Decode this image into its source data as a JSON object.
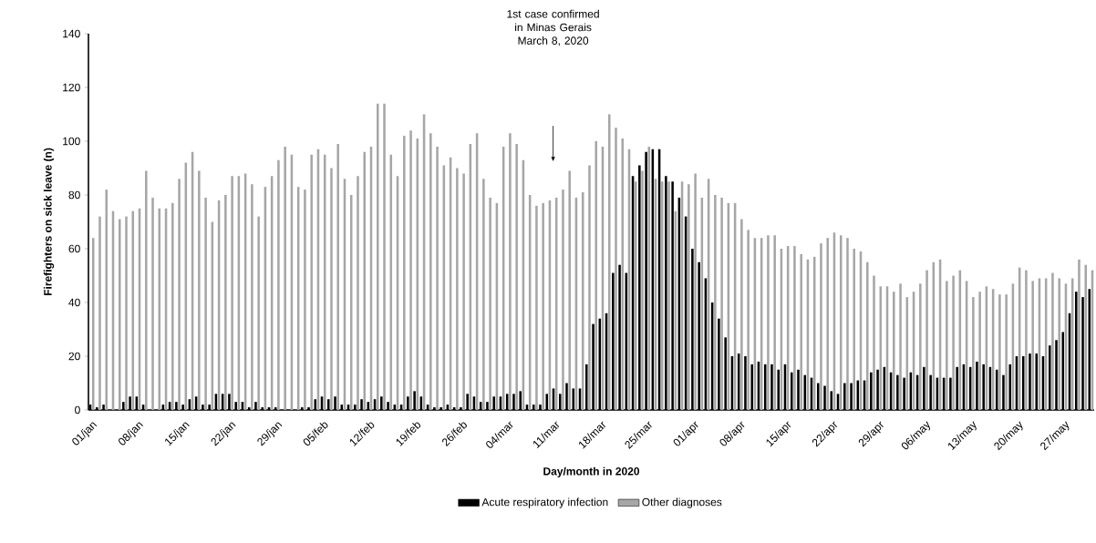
{
  "chart_data": {
    "type": "bar",
    "xlabel": "Day/month in  2020",
    "ylabel": "Firefighters on sick leave (n)",
    "annotations": [
      "1st case confirmed in Minas Gerais March 8, 2020"
    ],
    "categories": [
      "01/jan",
      null,
      null,
      null,
      null,
      null,
      null,
      "08/jan",
      null,
      null,
      null,
      null,
      null,
      null,
      "15/jan",
      null,
      null,
      null,
      null,
      null,
      null,
      "22/jan",
      null,
      null,
      null,
      null,
      null,
      null,
      "29/jan",
      null,
      null,
      null,
      null,
      null,
      null,
      "05/feb",
      null,
      null,
      null,
      null,
      null,
      null,
      "12/feb",
      null,
      null,
      null,
      null,
      null,
      null,
      "19/feb",
      null,
      null,
      null,
      null,
      null,
      null,
      "26/feb",
      null,
      null,
      null,
      null,
      null,
      null,
      "04/mar",
      null,
      null,
      null,
      null,
      null,
      null,
      "11/mar",
      null,
      null,
      null,
      null,
      null,
      null,
      "18/mar",
      null,
      null,
      null,
      null,
      null,
      null,
      "25/mar",
      null,
      null,
      null,
      null,
      null,
      null,
      "01/apr",
      null,
      null,
      null,
      null,
      null,
      null,
      "08/apr",
      null,
      null,
      null,
      null,
      null,
      null,
      "15/apr",
      null,
      null,
      null,
      null,
      null,
      null,
      "22/apr",
      null,
      null,
      null,
      null,
      null,
      null,
      "29/apr",
      null,
      null,
      null,
      null,
      null,
      null,
      "06/may",
      null,
      null,
      null,
      null,
      null,
      null,
      "13/may",
      null,
      null,
      null,
      null,
      null,
      null,
      "20/may",
      null,
      null,
      null,
      null,
      null,
      null,
      "27/may",
      null,
      null,
      null,
      null
    ],
    "series": [
      {
        "name": "Acute respiratory infection",
        "color": "#000000",
        "values": [
          2,
          1,
          2,
          0,
          0,
          3,
          5,
          5,
          2,
          0,
          0,
          2,
          3,
          3,
          2,
          4,
          5,
          2,
          2,
          6,
          6,
          6,
          3,
          3,
          1,
          3,
          1,
          1,
          1,
          0,
          0,
          0,
          1,
          1,
          4,
          5,
          4,
          5,
          2,
          2,
          2,
          4,
          3,
          4,
          5,
          3,
          2,
          2,
          5,
          7,
          5,
          2,
          1,
          1,
          2,
          1,
          1,
          6,
          5,
          3,
          3,
          5,
          5,
          6,
          6,
          7,
          2,
          2,
          2,
          6,
          8,
          6,
          10,
          8,
          8,
          17,
          32,
          34,
          36,
          51,
          54,
          51,
          87,
          91,
          96,
          97,
          97,
          87,
          85,
          79,
          72,
          60,
          55,
          49,
          40,
          34,
          27,
          20,
          21,
          20,
          17,
          18,
          17,
          17,
          15,
          17,
          14,
          15,
          13,
          12,
          10,
          9,
          7,
          6,
          10,
          10,
          11,
          11,
          14,
          15,
          16,
          14,
          13,
          12,
          14,
          13,
          16,
          13,
          12,
          12,
          12,
          16,
          17,
          16,
          18,
          17,
          16,
          15,
          13,
          17,
          20,
          20,
          21,
          21,
          20,
          24,
          26,
          29,
          36,
          44,
          42,
          45
        ]
      },
      {
        "name": "Other diagnoses",
        "color": "#a6a6a6",
        "values": [
          64,
          72,
          82,
          74,
          71,
          72,
          74,
          75,
          89,
          79,
          75,
          75,
          77,
          86,
          92,
          96,
          89,
          79,
          70,
          78,
          80,
          87,
          87,
          88,
          84,
          72,
          83,
          87,
          93,
          98,
          95,
          83,
          82,
          95,
          97,
          95,
          90,
          99,
          86,
          80,
          87,
          96,
          98,
          114,
          114,
          95,
          87,
          102,
          104,
          101,
          110,
          103,
          98,
          91,
          94,
          90,
          88,
          99,
          103,
          86,
          79,
          77,
          98,
          103,
          99,
          93,
          80,
          76,
          77,
          78,
          79,
          82,
          89,
          79,
          81,
          91,
          100,
          98,
          110,
          105,
          101,
          97,
          85,
          89,
          98,
          86,
          85,
          85,
          74,
          85,
          84,
          88,
          79,
          86,
          80,
          79,
          77,
          77,
          71,
          67,
          64,
          64,
          65,
          65,
          60,
          61,
          61,
          58,
          56,
          57,
          62,
          64,
          66,
          65,
          64,
          60,
          59,
          55,
          50,
          46,
          46,
          44,
          47,
          42,
          44,
          47,
          52,
          55,
          56,
          48,
          50,
          52,
          48,
          42,
          44,
          46,
          45,
          43,
          43,
          47,
          53,
          52,
          48,
          49,
          49,
          51,
          49,
          47,
          49,
          56,
          54,
          52
        ]
      }
    ],
    "ylim": [
      0,
      140
    ],
    "yticks": [
      0,
      20,
      40,
      60,
      80,
      100,
      120,
      140
    ],
    "legend": "bottom"
  }
}
